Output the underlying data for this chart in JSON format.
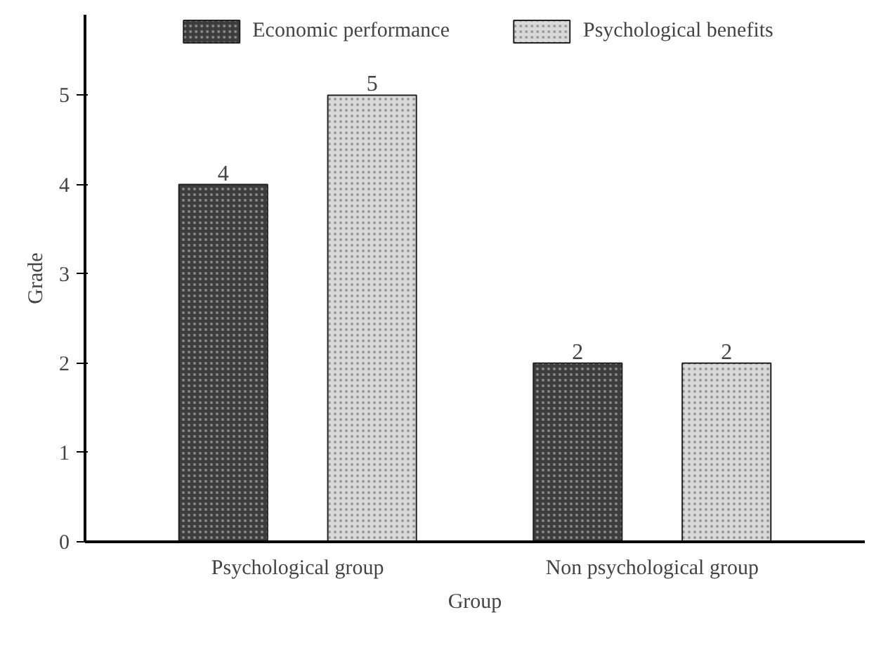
{
  "chart_data": {
    "type": "bar",
    "xlabel": "Group",
    "ylabel": "Grade",
    "categories": [
      "Psychological group",
      "Non psychological group"
    ],
    "series": [
      {
        "name": "Economic performance",
        "color": "#3c3c3c",
        "values": [
          4,
          2
        ]
      },
      {
        "name": "Psychological benefits",
        "color": "#d9d9d9",
        "values": [
          5,
          2
        ]
      }
    ],
    "ylim": [
      0,
      5.9
    ],
    "yticks": [
      0,
      1,
      2,
      3,
      4,
      5
    ],
    "data_labels": true,
    "legend": "top",
    "grid": false
  }
}
